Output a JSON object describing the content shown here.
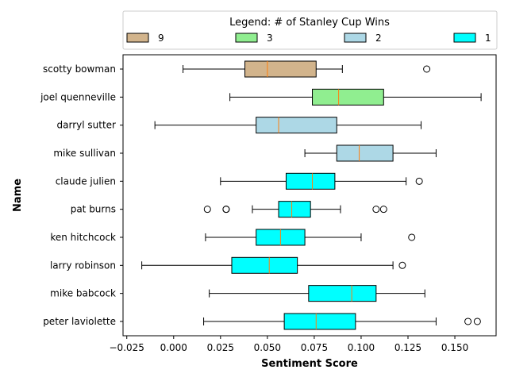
{
  "chart_data": {
    "type": "boxplot",
    "orientation": "horizontal",
    "xlabel": "Sentiment Score",
    "ylabel": "Name",
    "xlim": [
      -0.027,
      0.172
    ],
    "xticks": [
      -0.025,
      0.0,
      0.025,
      0.05,
      0.075,
      0.1,
      0.125,
      0.15
    ],
    "xtick_labels": [
      "−0.025",
      "0.000",
      "0.025",
      "0.050",
      "0.075",
      "0.100",
      "0.125",
      "0.150"
    ],
    "legend": {
      "title": "Legend: # of Stanley Cup Wins",
      "placement": "top",
      "entries": [
        {
          "label": "9",
          "color": "#d2b48c"
        },
        {
          "label": "3",
          "color": "#90ee90"
        },
        {
          "label": "2",
          "color": "#add8e6"
        },
        {
          "label": "1",
          "color": "#00ffff"
        }
      ]
    },
    "median_color": "#ff7f0e",
    "boxes": [
      {
        "name": "scotty bowman",
        "cups": 9,
        "color": "#d2b48c",
        "whisker_low": 0.005,
        "q1": 0.038,
        "median": 0.05,
        "q3": 0.076,
        "whisker_high": 0.09,
        "outliers": [
          0.135
        ]
      },
      {
        "name": "joel quenneville",
        "cups": 3,
        "color": "#90ee90",
        "whisker_low": 0.03,
        "q1": 0.074,
        "median": 0.088,
        "q3": 0.112,
        "whisker_high": 0.164,
        "outliers": []
      },
      {
        "name": "darryl sutter",
        "cups": 2,
        "color": "#add8e6",
        "whisker_low": -0.01,
        "q1": 0.044,
        "median": 0.056,
        "q3": 0.087,
        "whisker_high": 0.132,
        "outliers": []
      },
      {
        "name": "mike sullivan",
        "cups": 2,
        "color": "#add8e6",
        "whisker_low": 0.07,
        "q1": 0.087,
        "median": 0.099,
        "q3": 0.117,
        "whisker_high": 0.14,
        "outliers": []
      },
      {
        "name": "claude julien",
        "cups": 1,
        "color": "#00ffff",
        "whisker_low": 0.025,
        "q1": 0.06,
        "median": 0.074,
        "q3": 0.086,
        "whisker_high": 0.124,
        "outliers": [
          0.131
        ]
      },
      {
        "name": "pat burns",
        "cups": 1,
        "color": "#00ffff",
        "whisker_low": 0.042,
        "q1": 0.056,
        "median": 0.063,
        "q3": 0.073,
        "whisker_high": 0.089,
        "outliers": [
          0.018,
          0.028,
          0.028,
          0.108,
          0.112
        ]
      },
      {
        "name": "ken hitchcock",
        "cups": 1,
        "color": "#00ffff",
        "whisker_low": 0.017,
        "q1": 0.044,
        "median": 0.057,
        "q3": 0.07,
        "whisker_high": 0.1,
        "outliers": [
          0.127
        ]
      },
      {
        "name": "larry robinson",
        "cups": 1,
        "color": "#00ffff",
        "whisker_low": -0.017,
        "q1": 0.031,
        "median": 0.051,
        "q3": 0.066,
        "whisker_high": 0.117,
        "outliers": [
          0.122
        ]
      },
      {
        "name": "mike babcock",
        "cups": 1,
        "color": "#00ffff",
        "whisker_low": 0.019,
        "q1": 0.072,
        "median": 0.095,
        "q3": 0.108,
        "whisker_high": 0.134,
        "outliers": []
      },
      {
        "name": "peter laviolette",
        "cups": 1,
        "color": "#00ffff",
        "whisker_low": 0.016,
        "q1": 0.059,
        "median": 0.076,
        "q3": 0.097,
        "whisker_high": 0.14,
        "outliers": [
          0.157,
          0.162
        ]
      }
    ]
  }
}
